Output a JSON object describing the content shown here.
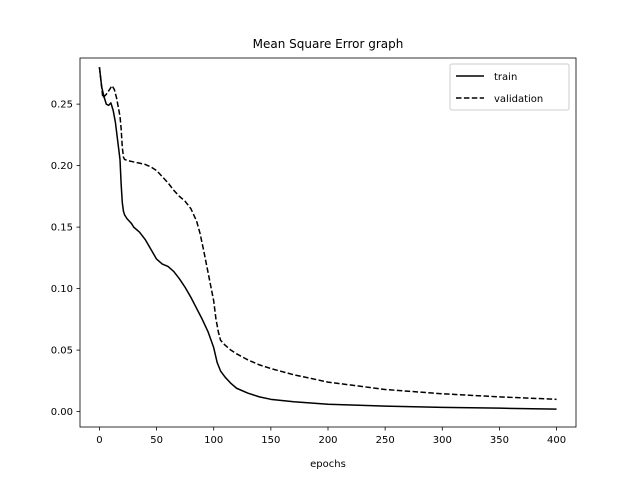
{
  "chart_data": {
    "type": "line",
    "title": "Mean Square Error graph",
    "xlabel": "epochs",
    "ylabel": "",
    "xlim": [
      -17,
      417
    ],
    "ylim": [
      -0.0125,
      0.2875
    ],
    "xticks": [
      0,
      50,
      100,
      150,
      200,
      250,
      300,
      350,
      400
    ],
    "yticks": [
      0.0,
      0.05,
      0.1,
      0.15,
      0.2,
      0.25
    ],
    "ytick_labels": [
      "0.00",
      "0.05",
      "0.10",
      "0.15",
      "0.20",
      "0.25"
    ],
    "legend": "top-right",
    "grid": false,
    "series": [
      {
        "name": "train",
        "style": "solid",
        "color": "#000000",
        "x": [
          0,
          2,
          4,
          6,
          8,
          10,
          12,
          14,
          16,
          18,
          19,
          20,
          21,
          22,
          24,
          26,
          28,
          30,
          35,
          40,
          45,
          50,
          55,
          60,
          65,
          70,
          75,
          80,
          85,
          90,
          95,
          100,
          103,
          106,
          110,
          115,
          120,
          130,
          140,
          150,
          170,
          200,
          250,
          300,
          350,
          400
        ],
        "y": [
          0.28,
          0.264,
          0.256,
          0.25,
          0.249,
          0.251,
          0.245,
          0.235,
          0.22,
          0.205,
          0.185,
          0.17,
          0.163,
          0.16,
          0.157,
          0.155,
          0.153,
          0.15,
          0.146,
          0.14,
          0.132,
          0.124,
          0.12,
          0.118,
          0.114,
          0.108,
          0.101,
          0.093,
          0.084,
          0.075,
          0.065,
          0.052,
          0.04,
          0.033,
          0.028,
          0.023,
          0.019,
          0.015,
          0.012,
          0.01,
          0.008,
          0.006,
          0.0045,
          0.0035,
          0.0028,
          0.002
        ]
      },
      {
        "name": "validation",
        "style": "dashed",
        "color": "#000000",
        "x": [
          0,
          3,
          6,
          9,
          11,
          13,
          15,
          17,
          18,
          19,
          20,
          21,
          22,
          25,
          30,
          35,
          40,
          45,
          50,
          55,
          60,
          65,
          70,
          75,
          80,
          85,
          88,
          91,
          94,
          97,
          100,
          102,
          104,
          106,
          110,
          115,
          120,
          130,
          140,
          150,
          170,
          200,
          250,
          300,
          350,
          400
        ],
        "y": [
          0.28,
          0.255,
          0.258,
          0.262,
          0.265,
          0.262,
          0.255,
          0.245,
          0.24,
          0.23,
          0.215,
          0.207,
          0.205,
          0.204,
          0.203,
          0.202,
          0.201,
          0.199,
          0.196,
          0.191,
          0.186,
          0.18,
          0.175,
          0.171,
          0.165,
          0.155,
          0.145,
          0.132,
          0.118,
          0.104,
          0.09,
          0.075,
          0.065,
          0.058,
          0.054,
          0.05,
          0.047,
          0.042,
          0.038,
          0.035,
          0.03,
          0.024,
          0.018,
          0.0145,
          0.012,
          0.01
        ]
      }
    ],
    "legend_entries": [
      "train",
      "validation"
    ]
  }
}
